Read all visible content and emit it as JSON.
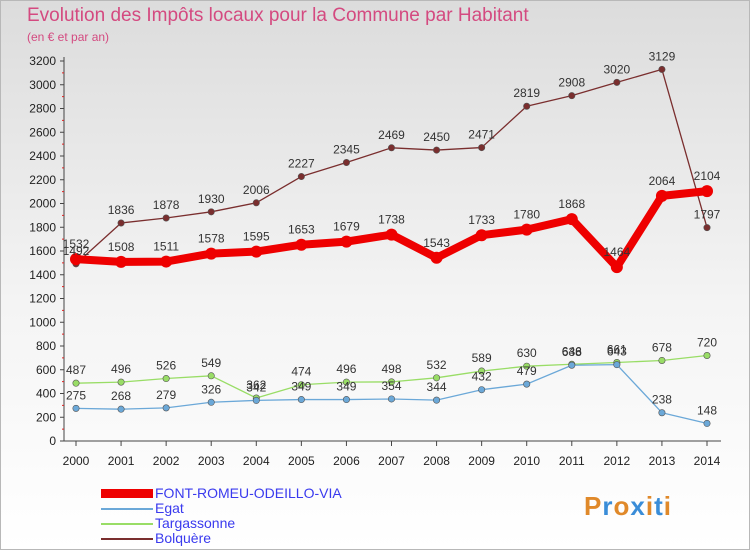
{
  "header": {
    "title": "Evolution des Impôts locaux pour la Commune par Habitant",
    "subtitle": "(en € et par an)"
  },
  "logo": {
    "letters": [
      "P",
      "r",
      "o",
      "x",
      "i",
      "t",
      "i"
    ],
    "colors": [
      "#e0892a",
      "#3a8dd8",
      "#e0892a",
      "#3a8dd8",
      "#e0892a",
      "#3a8dd8",
      "#e0892a"
    ]
  },
  "chart_data": {
    "type": "line",
    "title": "Evolution des Impôts locaux pour la Commune par Habitant",
    "subtitle": "(en € et par an)",
    "x": [
      "2000",
      "2001",
      "2002",
      "2003",
      "2004",
      "2005",
      "2006",
      "2007",
      "2008",
      "2009",
      "2010",
      "2011",
      "2012",
      "2013",
      "2014"
    ],
    "ylim": [
      0,
      3200
    ],
    "yticks": [
      0,
      200,
      400,
      600,
      800,
      1000,
      1200,
      1400,
      1600,
      1800,
      2000,
      2200,
      2400,
      2600,
      2800,
      3000,
      3200
    ],
    "grid": false,
    "legend_position": "bottom-left",
    "series": [
      {
        "name": "FONT-ROMEU-ODEILLO-VIA",
        "color": "#ee0000",
        "values": [
          1532,
          1508,
          1511,
          1578,
          1595,
          1653,
          1679,
          1738,
          1543,
          1733,
          1780,
          1868,
          1464,
          2064,
          2104
        ]
      },
      {
        "name": "Egat",
        "color": "#6ba8d8",
        "values": [
          275,
          268,
          279,
          326,
          342,
          349,
          349,
          354,
          344,
          432,
          479,
          638,
          643,
          238,
          148
        ]
      },
      {
        "name": "Targassonne",
        "color": "#99dd66",
        "values": [
          487,
          496,
          526,
          549,
          362,
          474,
          496,
          498,
          532,
          589,
          630,
          646,
          661,
          678,
          720
        ]
      },
      {
        "name": "Bolquère",
        "color": "#7a2e2e",
        "values": [
          1492,
          1836,
          1878,
          1930,
          2006,
          2227,
          2345,
          2469,
          2450,
          2471,
          2819,
          2908,
          3020,
          3129,
          1797
        ]
      }
    ]
  }
}
